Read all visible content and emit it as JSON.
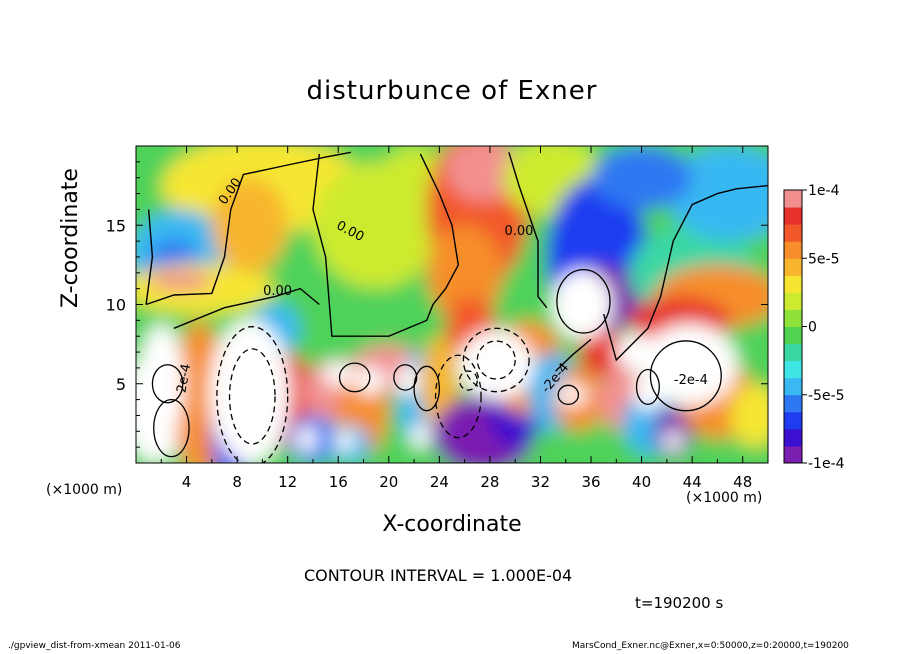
{
  "figure": {
    "title": "disturbunce of Exner",
    "interval_text": "CONTOUR INTERVAL = 1.000E-04",
    "time_text": "t=190200 s",
    "footer_left": "./gpview_dist-from-xmean  2011-01-06",
    "footer_right": "MarsCond_Exner.nc@Exner,x=0:50000,z=0:20000,t=190200"
  },
  "chart_data": {
    "type": "heatmap",
    "title": "disturbunce of Exner",
    "xlabel": "X-coordinate",
    "ylabel": "Z-coordinate",
    "x_unit": "(×1000 m)",
    "y_unit": "(×1000 m)",
    "xlim": [
      0,
      50
    ],
    "ylim": [
      0,
      20
    ],
    "xticks": [
      4,
      8,
      12,
      16,
      20,
      24,
      28,
      32,
      36,
      40,
      44,
      48
    ],
    "yticks": [
      5,
      10,
      15
    ],
    "colorbar": {
      "min": -0.0001,
      "max": 0.0001,
      "tick_labels": [
        "1e-4",
        "5e-5",
        "0",
        "-5e-5",
        "-1e-4"
      ],
      "tick_values": [
        0.0001,
        5e-05,
        0,
        -5e-05,
        -0.0001
      ],
      "colors": [
        "#7a1fb0",
        "#3d0fd0",
        "#1f3cf0",
        "#2e78f2",
        "#39b8f2",
        "#3ee6e6",
        "#3ad7a4",
        "#52d452",
        "#8ee23a",
        "#cdea2f",
        "#f6e632",
        "#f7b62e",
        "#f68e2a",
        "#f2582a",
        "#e8302c",
        "#f29090",
        "#ffffff"
      ]
    },
    "contour_labels": [
      "0.00",
      "0.00",
      "0.00",
      "0.00",
      "2e-4",
      "-2e-4",
      "-2e-4"
    ],
    "contour_interval": 0.0001,
    "time_s": 190200,
    "field_regions": [
      {
        "x": 20,
        "z": 18,
        "value": 0
      },
      {
        "x": 4,
        "z": 15.5,
        "value": -5e-05
      },
      {
        "x": 27,
        "z": 15,
        "value": 8e-05
      },
      {
        "x": 36,
        "z": 14,
        "value": -6e-05
      },
      {
        "x": 48,
        "z": 17,
        "value": -4e-05
      },
      {
        "x": 9,
        "z": 4,
        "value": -0.0002
      },
      {
        "x": 28,
        "z": 6,
        "value": -0.0002
      },
      {
        "x": 35.5,
        "z": 10,
        "value": -0.0002
      },
      {
        "x": 43,
        "z": 6,
        "value": -0.0002
      },
      {
        "x": 2,
        "z": 4,
        "value": 0.0002
      },
      {
        "x": 28,
        "z": 2,
        "value": -0.0001
      },
      {
        "x": 26,
        "z": 9,
        "value": 0.0001
      }
    ]
  }
}
